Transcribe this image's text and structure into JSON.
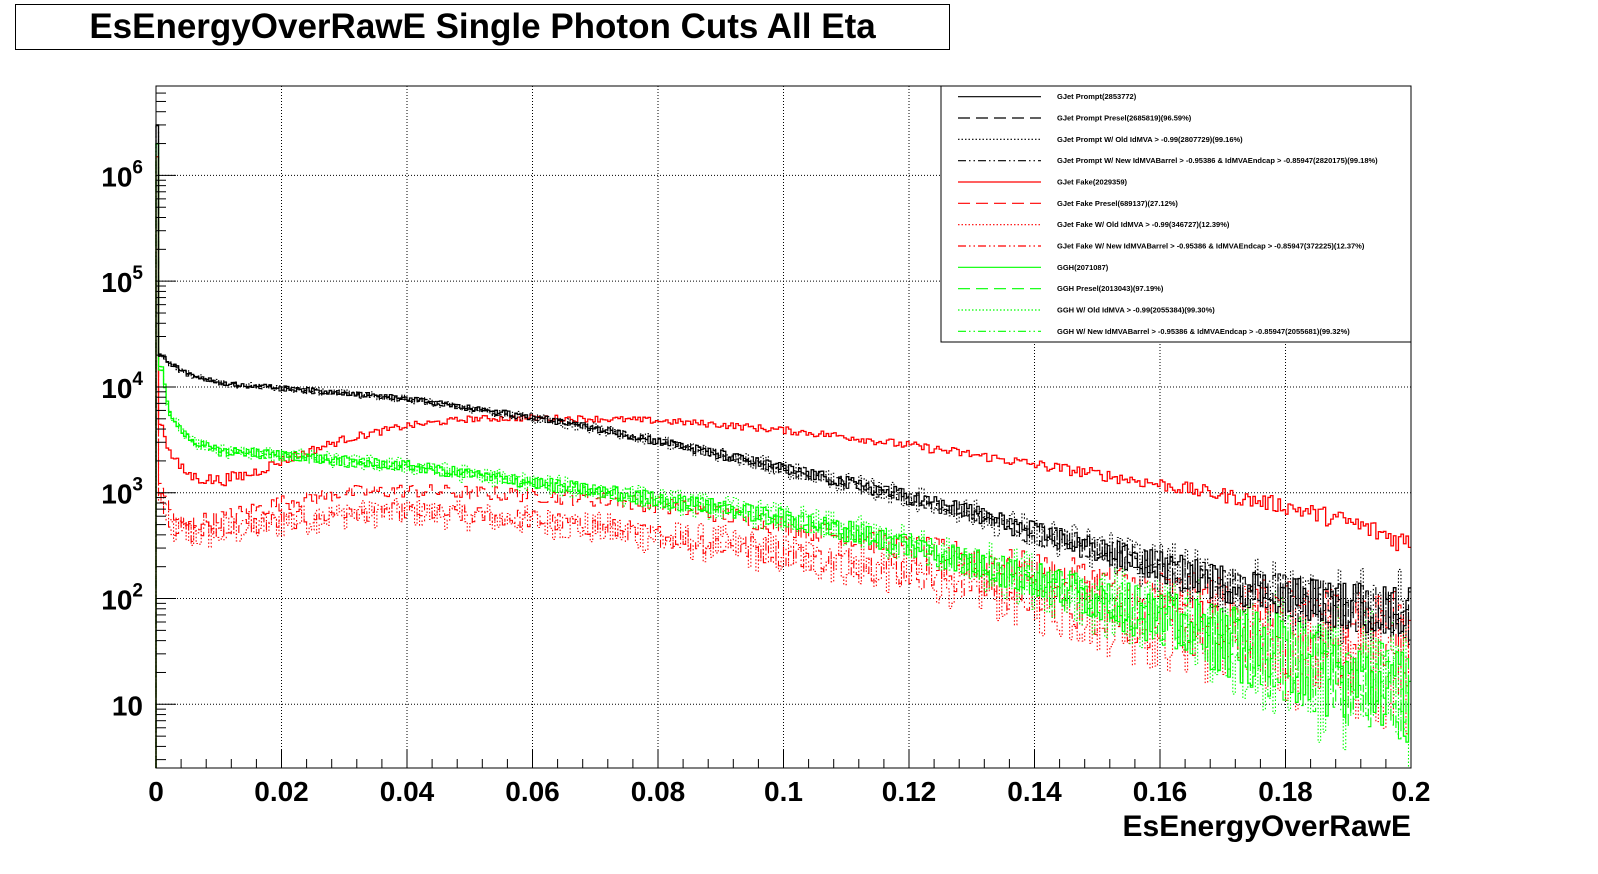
{
  "chart_data": {
    "type": "line",
    "title": "EsEnergyOverRawE Single Photon Cuts All Eta",
    "xlabel": "EsEnergyOverRawE",
    "ylabel": "",
    "xlim": [
      0,
      0.2
    ],
    "ylim": [
      2.5,
      7000000
    ],
    "yscale": "log",
    "grid": true,
    "legend_position": "top-right",
    "x_tick_labels": [
      "0",
      "0.02",
      "0.04",
      "0.06",
      "0.08",
      "0.1",
      "0.12",
      "0.14",
      "0.16",
      "0.18",
      "0.2"
    ],
    "y_tick_labels": [
      {
        "value": 10,
        "base": "10",
        "exp": ""
      },
      {
        "value": 100,
        "base": "10",
        "exp": "2"
      },
      {
        "value": 1000,
        "base": "10",
        "exp": "3"
      },
      {
        "value": 10000,
        "base": "10",
        "exp": "4"
      },
      {
        "value": 100000,
        "base": "10",
        "exp": "5"
      },
      {
        "value": 1000000,
        "base": "10",
        "exp": "6"
      }
    ],
    "series": [
      {
        "name": "GJet Prompt(2853772)",
        "color": "#000000",
        "dash": "solid",
        "peak": 3000000,
        "x": [
          0.001,
          0.002,
          0.005,
          0.01,
          0.02,
          0.03,
          0.04,
          0.05,
          0.06,
          0.07,
          0.08,
          0.09,
          0.1,
          0.11,
          0.12,
          0.13,
          0.14,
          0.15,
          0.16,
          0.17,
          0.18,
          0.19,
          0.2
        ],
        "y": [
          20000,
          17000,
          13500,
          11000,
          9800,
          8800,
          7800,
          6300,
          5200,
          4100,
          3100,
          2300,
          1700,
          1250,
          920,
          650,
          420,
          290,
          200,
          140,
          110,
          85,
          75
        ]
      },
      {
        "name": "GJet Prompt Presel(2685819)(96.59%)",
        "color": "#000000",
        "dash": "longdash",
        "peak": 2900000,
        "x": [
          0.001,
          0.002,
          0.005,
          0.01,
          0.02,
          0.03,
          0.04,
          0.05,
          0.06,
          0.07,
          0.08,
          0.09,
          0.1,
          0.11,
          0.12,
          0.13,
          0.14,
          0.15,
          0.16,
          0.17,
          0.18,
          0.19,
          0.2
        ],
        "y": [
          19500,
          16500,
          13000,
          10800,
          9600,
          8600,
          7600,
          6200,
          5100,
          4000,
          3050,
          2250,
          1650,
          1220,
          900,
          640,
          410,
          285,
          195,
          135,
          105,
          82,
          72
        ]
      },
      {
        "name": "GJet Prompt W/ Old IdMVA > -0.99(2807729)(99.16%)",
        "color": "#000000",
        "dash": "dot",
        "peak": 2950000,
        "x": [
          0.001,
          0.002,
          0.005,
          0.01,
          0.02,
          0.03,
          0.04,
          0.05,
          0.06,
          0.07,
          0.08,
          0.09,
          0.1,
          0.11,
          0.12,
          0.13,
          0.14,
          0.15,
          0.16,
          0.17,
          0.18,
          0.19,
          0.2
        ],
        "y": [
          19800,
          16800,
          13300,
          10900,
          9700,
          8700,
          7700,
          6250,
          5150,
          4050,
          3080,
          2280,
          1680,
          1240,
          910,
          645,
          415,
          288,
          198,
          138,
          108,
          84,
          74
        ]
      },
      {
        "name": "GJet Prompt W/ New IdMVABarrel > -0.95386 & IdMVAEndcap > -0.85947(2820175)(99.18%)",
        "color": "#000000",
        "dash": "dashdotdot",
        "peak": 2950000,
        "x": [
          0.001,
          0.002,
          0.005,
          0.01,
          0.02,
          0.03,
          0.04,
          0.05,
          0.06,
          0.07,
          0.08,
          0.09,
          0.1,
          0.11,
          0.12,
          0.13,
          0.14,
          0.15,
          0.16,
          0.17,
          0.18,
          0.19,
          0.2
        ],
        "y": [
          19900,
          16900,
          13400,
          10950,
          9750,
          8750,
          7750,
          6280,
          5180,
          4080,
          3090,
          2290,
          1690,
          1245,
          915,
          648,
          418,
          289,
          199,
          139,
          109,
          84,
          74
        ]
      },
      {
        "name": "GJet Fake(2029359)",
        "color": "#ff0000",
        "dash": "solid",
        "peak": 1500000,
        "x": [
          0.001,
          0.002,
          0.004,
          0.006,
          0.01,
          0.015,
          0.02,
          0.03,
          0.04,
          0.05,
          0.06,
          0.07,
          0.08,
          0.09,
          0.1,
          0.11,
          0.12,
          0.13,
          0.14,
          0.15,
          0.16,
          0.17,
          0.18,
          0.19,
          0.2
        ],
        "y": [
          4500,
          2500,
          1700,
          1400,
          1300,
          1500,
          2000,
          3200,
          4300,
          5000,
          5100,
          5000,
          4800,
          4400,
          3900,
          3400,
          2800,
          2300,
          1850,
          1500,
          1200,
          950,
          750,
          530,
          330
        ]
      },
      {
        "name": "GJet Fake Presel(689137)(27.12%)",
        "color": "#ff0000",
        "dash": "longdash",
        "peak": 400000,
        "x": [
          0.001,
          0.002,
          0.004,
          0.01,
          0.02,
          0.03,
          0.04,
          0.05,
          0.06,
          0.07,
          0.08,
          0.09,
          0.1,
          0.11,
          0.12,
          0.13,
          0.14,
          0.15,
          0.16,
          0.17,
          0.18,
          0.19,
          0.2
        ],
        "y": [
          1200,
          700,
          500,
          560,
          800,
          1000,
          1050,
          1000,
          950,
          870,
          770,
          630,
          490,
          390,
          300,
          250,
          190,
          150,
          120,
          100,
          85,
          75,
          60
        ]
      },
      {
        "name": "GJet Fake W/ Old IdMVA > -0.99(346727)(12.39%)",
        "color": "#ff0000",
        "dash": "dot",
        "peak": 200000,
        "x": [
          0.001,
          0.002,
          0.004,
          0.01,
          0.02,
          0.03,
          0.04,
          0.05,
          0.06,
          0.07,
          0.08,
          0.09,
          0.1,
          0.11,
          0.12,
          0.13,
          0.14,
          0.15,
          0.16,
          0.17,
          0.18,
          0.19,
          0.2
        ],
        "y": [
          900,
          500,
          400,
          420,
          520,
          620,
          650,
          600,
          540,
          460,
          380,
          320,
          260,
          220,
          180,
          140,
          100,
          75,
          55,
          45,
          35,
          30,
          25
        ]
      },
      {
        "name": "GJet Fake W/ New IdMVABarrel > -0.95386 & IdMVAEndcap > -0.85947(372225)(12.37%)",
        "color": "#ff0000",
        "dash": "dashdotdot",
        "peak": 200000,
        "x": [
          0.001,
          0.002,
          0.004,
          0.01,
          0.02,
          0.03,
          0.04,
          0.05,
          0.06,
          0.07,
          0.08,
          0.09,
          0.1,
          0.11,
          0.12,
          0.13,
          0.14,
          0.15,
          0.16,
          0.17,
          0.18,
          0.19,
          0.2
        ],
        "y": [
          950,
          520,
          420,
          440,
          540,
          640,
          670,
          620,
          560,
          480,
          395,
          330,
          270,
          225,
          185,
          145,
          105,
          78,
          58,
          47,
          37,
          31,
          26
        ]
      },
      {
        "name": "GGH(2071087)",
        "color": "#00ff00",
        "dash": "solid",
        "peak": 2000000,
        "x": [
          0.001,
          0.002,
          0.004,
          0.006,
          0.01,
          0.02,
          0.03,
          0.04,
          0.05,
          0.06,
          0.07,
          0.08,
          0.09,
          0.1,
          0.11,
          0.12,
          0.13,
          0.14,
          0.15,
          0.16,
          0.17,
          0.18,
          0.19,
          0.2
        ],
        "y": [
          15000,
          6000,
          4000,
          3000,
          2500,
          2300,
          2000,
          1800,
          1500,
          1250,
          1050,
          870,
          720,
          580,
          440,
          320,
          220,
          150,
          100,
          65,
          40,
          28,
          18,
          12
        ]
      },
      {
        "name": "GGH Presel(2013043)(97.19%)",
        "color": "#00ff00",
        "dash": "longdash",
        "peak": 1950000,
        "x": [
          0.001,
          0.002,
          0.004,
          0.006,
          0.01,
          0.02,
          0.03,
          0.04,
          0.05,
          0.06,
          0.07,
          0.08,
          0.09,
          0.1,
          0.11,
          0.12,
          0.13,
          0.14,
          0.15,
          0.16,
          0.17,
          0.18,
          0.19,
          0.2
        ],
        "y": [
          14500,
          5800,
          3900,
          2900,
          2450,
          2250,
          1950,
          1760,
          1470,
          1220,
          1030,
          850,
          700,
          565,
          430,
          312,
          215,
          146,
          98,
          63,
          39,
          27,
          17,
          11
        ]
      },
      {
        "name": "GGH W/ Old IdMVA > -0.99(2055384)(99.30%)",
        "color": "#00ff00",
        "dash": "dot",
        "peak": 1980000,
        "x": [
          0.001,
          0.002,
          0.004,
          0.006,
          0.01,
          0.02,
          0.03,
          0.04,
          0.05,
          0.06,
          0.07,
          0.08,
          0.09,
          0.1,
          0.11,
          0.12,
          0.13,
          0.14,
          0.15,
          0.16,
          0.17,
          0.18,
          0.19,
          0.2
        ],
        "y": [
          14900,
          5950,
          3980,
          2980,
          2490,
          2290,
          1990,
          1790,
          1490,
          1245,
          1045,
          865,
          715,
          576,
          437,
          318,
          218,
          149,
          99,
          64,
          40,
          28,
          18,
          12
        ]
      },
      {
        "name": "GGH W/ New IdMVABarrel > -0.95386 & IdMVAEndcap > -0.85947(2055681)(99.32%)",
        "color": "#00ff00",
        "dash": "dashdotdot",
        "peak": 1980000,
        "x": [
          0.001,
          0.002,
          0.004,
          0.006,
          0.01,
          0.02,
          0.03,
          0.04,
          0.05,
          0.06,
          0.07,
          0.08,
          0.09,
          0.1,
          0.11,
          0.12,
          0.13,
          0.14,
          0.15,
          0.16,
          0.17,
          0.18,
          0.19,
          0.2
        ],
        "y": [
          14900,
          5950,
          3980,
          2980,
          2490,
          2290,
          1990,
          1790,
          1490,
          1245,
          1045,
          865,
          715,
          576,
          437,
          318,
          218,
          149,
          99,
          64,
          40,
          28,
          18,
          12
        ]
      }
    ]
  }
}
